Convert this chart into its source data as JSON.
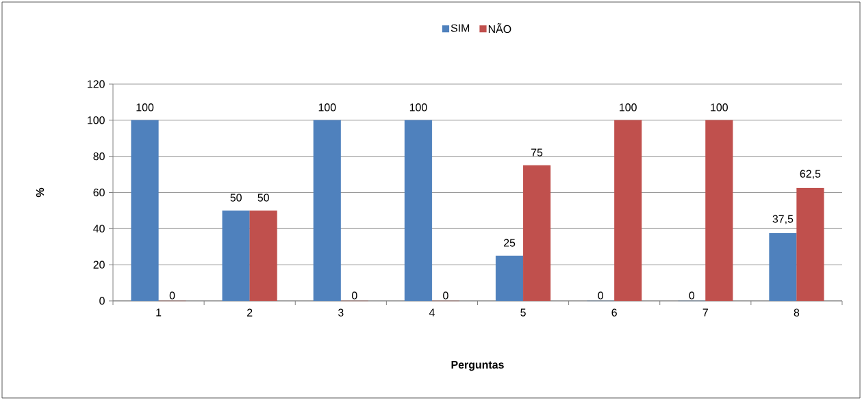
{
  "chart_data": {
    "type": "bar",
    "xlabel": "Perguntas",
    "ylabel": "%",
    "categories": [
      "1",
      "2",
      "3",
      "4",
      "5",
      "6",
      "7",
      "8"
    ],
    "series": [
      {
        "name": "SIM",
        "color": "#4f81bd",
        "values": [
          100,
          50,
          100,
          100,
          25,
          0,
          0,
          37.5
        ],
        "value_labels": [
          "100",
          "50",
          "100",
          "100",
          "25",
          "0",
          "0",
          "37,5"
        ]
      },
      {
        "name": "NÃO",
        "color": "#c0504d",
        "values": [
          0,
          50,
          0,
          0,
          75,
          100,
          100,
          62.5
        ],
        "value_labels": [
          "0",
          "50",
          "0",
          "0",
          "75",
          "100",
          "100",
          "62,5"
        ]
      }
    ],
    "ylim": [
      0,
      120
    ],
    "yticks": [
      0,
      20,
      40,
      60,
      80,
      100,
      120
    ],
    "grid": "y",
    "legend": "top"
  }
}
